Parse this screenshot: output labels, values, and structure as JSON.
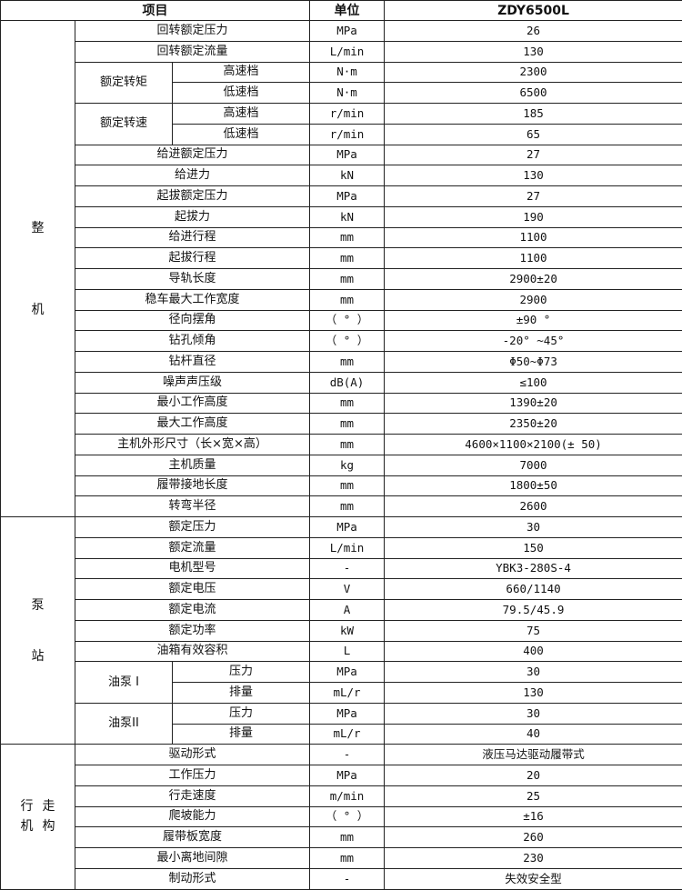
{
  "header": {
    "item": "项目",
    "unit": "单位",
    "value": "ZDY6500L"
  },
  "sections": [
    {
      "label": "整机",
      "style": "spread",
      "rows": [
        {
          "item": "回转额定压力",
          "unit": "MPa",
          "value": "26"
        },
        {
          "item": "回转额定流量",
          "unit": "L/min",
          "value": "130"
        },
        {
          "group": "额定转矩",
          "sub": "高速档",
          "unit": "N·m",
          "value": "2300"
        },
        {
          "sub": "低速档",
          "unit": "N·m",
          "value": "6500"
        },
        {
          "group": "额定转速",
          "sub": "高速档",
          "unit": "r/min",
          "value": "185"
        },
        {
          "sub": "低速档",
          "unit": "r/min",
          "value": "65"
        },
        {
          "item": "给进额定压力",
          "unit": "MPa",
          "value": "27"
        },
        {
          "item": "给进力",
          "unit": "kN",
          "value": "130"
        },
        {
          "item": "起拔额定压力",
          "unit": "MPa",
          "value": "27"
        },
        {
          "item": "起拔力",
          "unit": "kN",
          "value": "190"
        },
        {
          "item": "给进行程",
          "unit": "mm",
          "value": "1100"
        },
        {
          "item": "起拔行程",
          "unit": "mm",
          "value": "1100"
        },
        {
          "item": "导轨长度",
          "unit": "mm",
          "value": "2900±20"
        },
        {
          "item": "稳车最大工作宽度",
          "unit": "mm",
          "value": "2900"
        },
        {
          "item": "径向摆角",
          "unit": "（ ° ）",
          "value": "±90 °"
        },
        {
          "item": "钻孔倾角",
          "unit": "（ ° ）",
          "value": "-20° ~45°"
        },
        {
          "item": "钻杆直径",
          "unit": "mm",
          "value": "Φ50~Φ73"
        },
        {
          "item": "噪声声压级",
          "unit": "dB(A)",
          "value": "≤100"
        },
        {
          "item": "最小工作高度",
          "unit": "mm",
          "value": "1390±20"
        },
        {
          "item": "最大工作高度",
          "unit": "mm",
          "value": "2350±20"
        },
        {
          "item": "主机外形尺寸（长×宽×高）",
          "unit": "mm",
          "value": "4600×1100×2100(± 50)"
        },
        {
          "item": "主机质量",
          "unit": "kg",
          "value": "7000"
        },
        {
          "item": "履带接地长度",
          "unit": "mm",
          "value": "1800±50"
        },
        {
          "item": "转弯半径",
          "unit": "mm",
          "value": "2600"
        }
      ]
    },
    {
      "label": "泵站",
      "style": "spread2",
      "rows": [
        {
          "item": "额定压力",
          "unit": "MPa",
          "value": "30"
        },
        {
          "item": "额定流量",
          "unit": "L/min",
          "value": "150"
        },
        {
          "item": "电机型号",
          "unit": "-",
          "value": "YBK3-280S-4"
        },
        {
          "item": "额定电压",
          "unit": "V",
          "value": "660/1140"
        },
        {
          "item": "额定电流",
          "unit": "A",
          "value": "79.5/45.9"
        },
        {
          "item": "额定功率",
          "unit": "kW",
          "value": "75"
        },
        {
          "item": "油箱有效容积",
          "unit": "L",
          "value": "400"
        },
        {
          "group": "油泵 I",
          "sub": "压力",
          "unit": "MPa",
          "value": "30"
        },
        {
          "sub": "排量",
          "unit": "mL/r",
          "value": "130"
        },
        {
          "group": "油泵II",
          "sub": "压力",
          "unit": "MPa",
          "value": "30"
        },
        {
          "sub": "排量",
          "unit": "mL/r",
          "value": "40"
        }
      ]
    },
    {
      "label": "行走机构",
      "style": "tight",
      "rows": [
        {
          "item": "驱动形式",
          "unit": "-",
          "value": "液压马达驱动履带式"
        },
        {
          "item": "工作压力",
          "unit": "MPa",
          "value": "20"
        },
        {
          "item": "行走速度",
          "unit": "m/min",
          "value": "25"
        },
        {
          "item": "爬坡能力",
          "unit": "（ ° ）",
          "value": "±16"
        },
        {
          "item": "履带板宽度",
          "unit": "mm",
          "value": "260"
        },
        {
          "item": "最小离地间隙",
          "unit": "mm",
          "value": "230"
        },
        {
          "item": "制动形式",
          "unit": "-",
          "value": "失效安全型"
        }
      ]
    }
  ]
}
